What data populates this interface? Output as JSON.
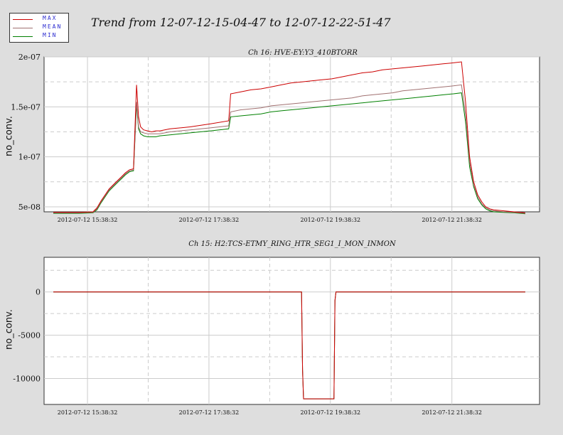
{
  "page_title": "Trend from 12-07-12-15-04-47 to 12-07-12-22-51-47",
  "legend": {
    "placement": "top-left",
    "entries": [
      {
        "label": "MAX",
        "color": "#cc0000"
      },
      {
        "label": "MEAN",
        "color": "#a07070"
      },
      {
        "label": "MIN",
        "color": "#008000"
      }
    ]
  },
  "chart_data": [
    {
      "type": "line",
      "title": "Ch 16: HVE-EY:Y3_410BTORR",
      "ylabel": "no_conv.",
      "xlim": [
        "2012-07-12 15:04:47",
        "2012-07-12 22:51:47"
      ],
      "ylim": [
        4.5e-08,
        2e-07
      ],
      "yticks": [
        {
          "value": 5e-08,
          "label": "5e-08"
        },
        {
          "value": 1e-07,
          "label": "1e-07"
        },
        {
          "value": 1.5e-07,
          "label": "1.5e-07"
        },
        {
          "value": 2e-07,
          "label": "2e-07"
        }
      ],
      "xticks": [
        "2012-07-12 15:38:32",
        "2012-07-12 17:38:32",
        "2012-07-12 19:38:32",
        "2012-07-12 21:38:32"
      ],
      "grid": true,
      "x": [
        "15:04:47",
        "15:30",
        "15:44",
        "15:48",
        "15:52",
        "15:56",
        "16:00",
        "16:04",
        "16:08",
        "16:12",
        "16:16",
        "16:20",
        "16:24",
        "16:27",
        "16:29",
        "16:31",
        "16:34",
        "16:38",
        "16:42",
        "16:46",
        "16:50",
        "17:00",
        "17:20",
        "17:40",
        "17:58",
        "18:00",
        "18:10",
        "18:20",
        "18:30",
        "18:40",
        "18:50",
        "19:00",
        "19:10",
        "19:20",
        "19:30",
        "19:40",
        "19:50",
        "20:00",
        "20:10",
        "20:20",
        "20:30",
        "20:40",
        "20:50",
        "21:00",
        "21:10",
        "21:20",
        "21:30",
        "21:40",
        "21:48",
        "21:52",
        "21:56",
        "22:00",
        "22:04",
        "22:08",
        "22:12",
        "22:16",
        "22:20",
        "22:30",
        "22:40",
        "22:51"
      ],
      "series": [
        {
          "name": "MAX",
          "color": "#cc0000",
          "values": [
            4.45e-08,
            4.45e-08,
            4.5e-08,
            4.9e-08,
            5.6e-08,
            6.2e-08,
            6.8e-08,
            7.2e-08,
            7.6e-08,
            8e-08,
            8.4e-08,
            8.7e-08,
            8.8e-08,
            1.72e-07,
            1.4e-07,
            1.3e-07,
            1.27e-07,
            1.26e-07,
            1.25e-07,
            1.26e-07,
            1.26e-07,
            1.28e-07,
            1.3e-07,
            1.33e-07,
            1.36e-07,
            1.63e-07,
            1.65e-07,
            1.67e-07,
            1.68e-07,
            1.7e-07,
            1.72e-07,
            1.74e-07,
            1.75e-07,
            1.76e-07,
            1.77e-07,
            1.78e-07,
            1.8e-07,
            1.82e-07,
            1.84e-07,
            1.85e-07,
            1.87e-07,
            1.88e-07,
            1.89e-07,
            1.9e-07,
            1.91e-07,
            1.92e-07,
            1.93e-07,
            1.94e-07,
            1.95e-07,
            1.55e-07,
            1e-07,
            7.5e-08,
            6.2e-08,
            5.5e-08,
            5e-08,
            4.8e-08,
            4.7e-08,
            4.6e-08,
            4.5e-08,
            4.4e-08
          ]
        },
        {
          "name": "MEAN",
          "color": "#a07070",
          "values": [
            4.4e-08,
            4.4e-08,
            4.45e-08,
            4.8e-08,
            5.5e-08,
            6.1e-08,
            6.7e-08,
            7.1e-08,
            7.5e-08,
            7.9e-08,
            8.3e-08,
            8.6e-08,
            8.7e-08,
            1.55e-07,
            1.3e-07,
            1.25e-07,
            1.24e-07,
            1.23e-07,
            1.23e-07,
            1.23e-07,
            1.23e-07,
            1.25e-07,
            1.27e-07,
            1.29e-07,
            1.31e-07,
            1.45e-07,
            1.47e-07,
            1.48e-07,
            1.49e-07,
            1.51e-07,
            1.52e-07,
            1.53e-07,
            1.54e-07,
            1.55e-07,
            1.56e-07,
            1.57e-07,
            1.58e-07,
            1.59e-07,
            1.61e-07,
            1.62e-07,
            1.63e-07,
            1.64e-07,
            1.66e-07,
            1.67e-07,
            1.68e-07,
            1.69e-07,
            1.7e-07,
            1.71e-07,
            1.72e-07,
            1.42e-07,
            9.5e-08,
            7.2e-08,
            6e-08,
            5.3e-08,
            4.9e-08,
            4.7e-08,
            4.6e-08,
            4.5e-08,
            4.45e-08,
            4.35e-08
          ]
        },
        {
          "name": "MIN",
          "color": "#008000",
          "values": [
            4.35e-08,
            4.35e-08,
            4.4e-08,
            4.7e-08,
            5.4e-08,
            6e-08,
            6.6e-08,
            7e-08,
            7.4e-08,
            7.8e-08,
            8.2e-08,
            8.5e-08,
            8.6e-08,
            1.52e-07,
            1.28e-07,
            1.23e-07,
            1.21e-07,
            1.2e-07,
            1.2e-07,
            1.2e-07,
            1.21e-07,
            1.22e-07,
            1.24e-07,
            1.26e-07,
            1.28e-07,
            1.4e-07,
            1.41e-07,
            1.42e-07,
            1.43e-07,
            1.45e-07,
            1.46e-07,
            1.47e-07,
            1.48e-07,
            1.49e-07,
            1.5e-07,
            1.51e-07,
            1.52e-07,
            1.53e-07,
            1.54e-07,
            1.55e-07,
            1.56e-07,
            1.57e-07,
            1.58e-07,
            1.59e-07,
            1.6e-07,
            1.61e-07,
            1.62e-07,
            1.63e-07,
            1.64e-07,
            1.35e-07,
            9e-08,
            7e-08,
            5.8e-08,
            5.2e-08,
            4.8e-08,
            4.6e-08,
            4.5e-08,
            4.45e-08,
            4.4e-08,
            4.3e-08
          ]
        }
      ]
    },
    {
      "type": "line",
      "title": "Ch 15: H2:TCS-ETMY_RING_HTR_SEG1_I_MON_INMON",
      "ylabel": "no_conv.",
      "xlim": [
        "2012-07-12 15:04:47",
        "2012-07-12 22:51:47"
      ],
      "ylim": [
        -13000,
        4000
      ],
      "yticks": [
        {
          "value": 0,
          "label": "0"
        },
        {
          "value": -5000,
          "label": "-5000"
        },
        {
          "value": -10000,
          "label": "-10000"
        }
      ],
      "xticks": [
        "2012-07-12 15:38:32",
        "2012-07-12 17:38:32",
        "2012-07-12 19:38:32",
        "2012-07-12 21:38:32"
      ],
      "grid": true,
      "x": [
        "15:04:47",
        "19:10",
        "19:11",
        "19:12",
        "19:42",
        "19:43",
        "19:44",
        "22:51"
      ],
      "series": [
        {
          "name": "MAX",
          "color": "#cc0000",
          "values": [
            0,
            0,
            -9000,
            -12350,
            -12350,
            -1000,
            0,
            0
          ]
        },
        {
          "name": "MEAN",
          "color": "#a07070",
          "values": [
            0,
            0,
            -9000,
            -12350,
            -12350,
            -1000,
            0,
            0
          ]
        },
        {
          "name": "MIN",
          "color": "#008000",
          "values": [
            0,
            0,
            -9000,
            -12350,
            -12350,
            -1000,
            0,
            0
          ]
        }
      ]
    }
  ]
}
